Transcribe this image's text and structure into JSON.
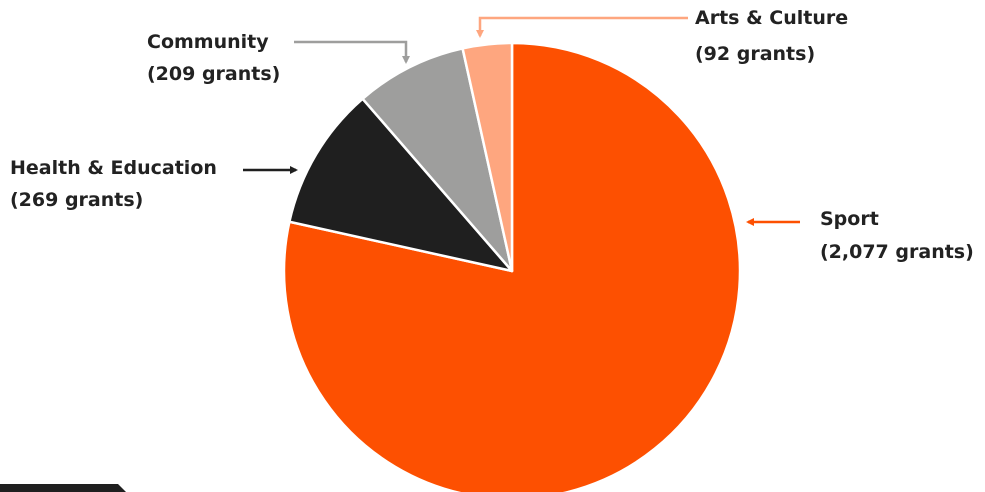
{
  "chart_data": {
    "type": "pie",
    "start": "top",
    "direction": "clockwise",
    "slices": [
      {
        "name": "Sport",
        "value": 2077,
        "label_line1": "Sport",
        "label_line2": "(2,077 grants)",
        "color": "#fd5001",
        "arrow_color": "#fd5001"
      },
      {
        "name": "Health & Education",
        "value": 269,
        "label_line1": "Health & Education",
        "label_line2": "(269 grants)",
        "color": "#1f1f1f",
        "arrow_color": "#1f1f1f"
      },
      {
        "name": "Community",
        "value": 209,
        "label_line1": "Community",
        "label_line2": "(209 grants)",
        "color": "#9e9e9d",
        "arrow_color": "#9e9e9d"
      },
      {
        "name": "Arts & Culture",
        "value": 92,
        "label_line1": "Arts & Culture",
        "label_line2": "(92 grants)",
        "color": "#fea67f",
        "arrow_color": "#fea67f"
      }
    ]
  }
}
